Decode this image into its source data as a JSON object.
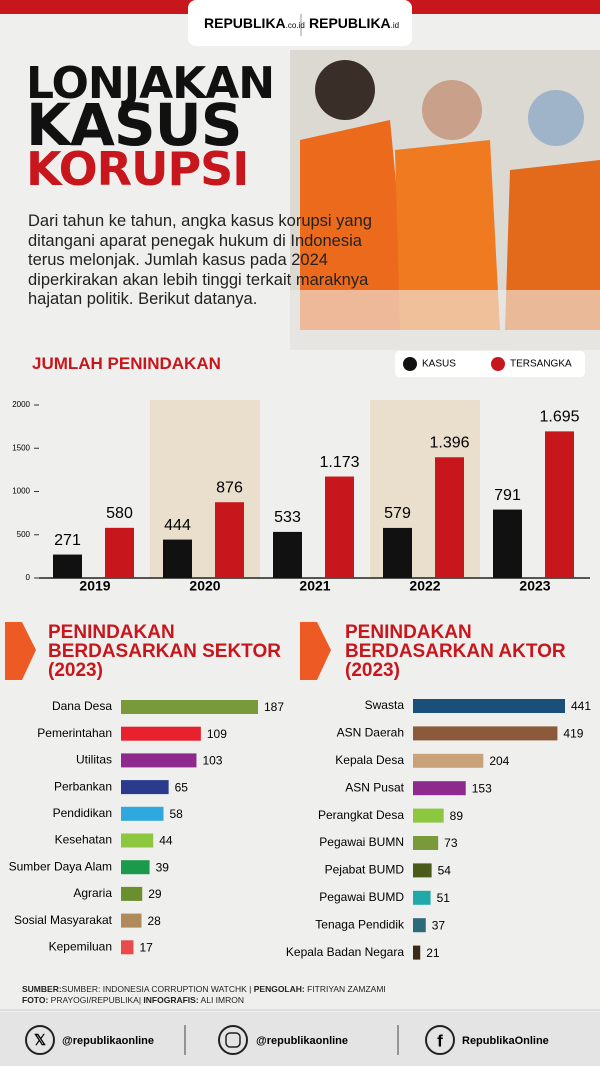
{
  "header": {
    "logo_1": "REPUBLIKA",
    "logo_1_suffix": ".co.id",
    "logo_2": "REPUBLIKA",
    "logo_2_suffix": ".id",
    "title_1": "LONJAKAN",
    "title_2": "KASUS",
    "title_3": "KORUPSI"
  },
  "intro": "Dari tahun ke tahun, angka kasus korupsi yang ditangani aparat penegak hukum di Indonesia terus melonjak. Jumlah kasus pada 2024 diperkirakan akan lebih tinggi terkait maraknya hajatan politik. Berikut datanya.",
  "chart_data": [
    {
      "type": "bar",
      "title": "JUMLAH PENINDAKAN",
      "categories": [
        "2019",
        "2020",
        "2021",
        "2022",
        "2023"
      ],
      "series": [
        {
          "name": "KASUS",
          "color": "#111111",
          "values": [
            271,
            444,
            533,
            579,
            791
          ]
        },
        {
          "name": "TERSANGKA",
          "color": "#c8161d",
          "values": [
            580,
            876,
            1173,
            1396,
            1695
          ],
          "value_labels": [
            "580",
            "876",
            "1.173",
            "1.396",
            "1.695"
          ]
        }
      ],
      "ylim": [
        0,
        2000
      ],
      "yticks": [
        0,
        500,
        1000,
        1500,
        2000
      ],
      "legend": "top-right"
    },
    {
      "type": "bar",
      "horizontal": true,
      "title": "PENINDAKAN BERDASARKAN SEKTOR (2023)",
      "categories": [
        "Dana Desa",
        "Pemerintahan",
        "Utilitas",
        "Perbankan",
        "Pendidikan",
        "Kesehatan",
        "Sumber Daya Alam",
        "Agraria",
        "Sosial Masyarakat",
        "Kepemiluan"
      ],
      "values": [
        187,
        109,
        103,
        65,
        58,
        44,
        39,
        29,
        28,
        17
      ],
      "colors": [
        "#7a9a3a",
        "#e8212e",
        "#8e2a8e",
        "#2b3a8c",
        "#2fa8e0",
        "#8dc63f",
        "#1a9a4a",
        "#6b8e2f",
        "#b08a5a",
        "#e84b4b"
      ]
    },
    {
      "type": "bar",
      "horizontal": true,
      "title": "PENINDAKAN BERDASARKAN AKTOR (2023)",
      "categories": [
        "Swasta",
        "ASN Daerah",
        "Kepala Desa",
        "ASN Pusat",
        "Perangkat Desa",
        "Pegawai BUMN",
        "Pejabat BUMD",
        "Pegawai BUMD",
        "Tenaga Pendidik",
        "Kepala Badan Negara"
      ],
      "values": [
        441,
        419,
        204,
        153,
        89,
        73,
        54,
        51,
        37,
        21
      ],
      "colors": [
        "#1a4f7a",
        "#8a5a3a",
        "#c9a27a",
        "#8e2a8e",
        "#8dc63f",
        "#7a9a3a",
        "#4a5a1a",
        "#1fa9a9",
        "#2a6a7a",
        "#3a2a1a"
      ]
    }
  ],
  "source": {
    "label_1": "SUMBER:",
    "text_1": "SUMBER: INDONESIA CORRUPTION WATCHK | ",
    "label_2": "PENGOLAH:",
    "text_2": " FITRIYAN ZAMZAMI",
    "label_3": "FOTO:",
    "text_3": " PRAYOGI/REPUBLIKA| ",
    "label_4": "INFOGRAFIS:",
    "text_4": " ALI IMRON"
  },
  "footer": {
    "twitter": "@republikaonline",
    "instagram": "@republikaonline",
    "facebook": "RepublikaOnline"
  }
}
